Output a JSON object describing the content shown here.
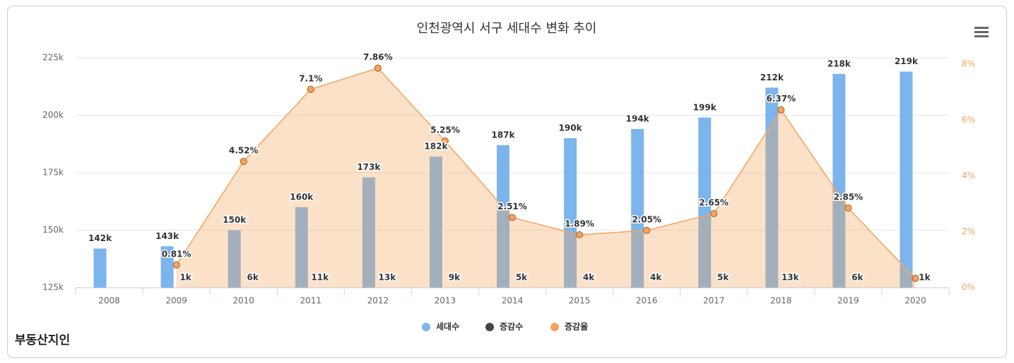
{
  "chart_data": {
    "type": "combo",
    "title": "인천광역시 서구 세대수 변화 추이",
    "categories": [
      "2008",
      "2009",
      "2010",
      "2011",
      "2012",
      "2013",
      "2014",
      "2015",
      "2016",
      "2017",
      "2018",
      "2019",
      "2020"
    ],
    "series": [
      {
        "name": "세대수",
        "type": "bar",
        "color": "#7cb5ec",
        "values": [
          142000,
          143000,
          150000,
          160000,
          173000,
          182000,
          187000,
          190000,
          194000,
          199000,
          212000,
          218000,
          219000
        ],
        "value_labels": [
          "142k",
          "143k",
          "150k",
          "160k",
          "173k",
          "182k",
          "187k",
          "190k",
          "194k",
          "199k",
          "212k",
          "218k",
          "219k"
        ]
      },
      {
        "name": "증감수",
        "type": "bar",
        "color": "#434348",
        "values": [
          null,
          1000,
          6000,
          11000,
          13000,
          9000,
          5000,
          4000,
          4000,
          5000,
          13000,
          6000,
          1000
        ],
        "value_labels": [
          null,
          "1k",
          "6k",
          "11k",
          "13k",
          "9k",
          "5k",
          "4k",
          "4k",
          "5k",
          "13k",
          "6k",
          "1k"
        ]
      },
      {
        "name": "증감율",
        "type": "area",
        "axis": "y2",
        "color": "#f7a35c",
        "values": [
          null,
          0.81,
          4.52,
          7.1,
          7.86,
          5.25,
          2.51,
          1.89,
          2.05,
          2.65,
          6.37,
          2.85,
          0.33
        ],
        "value_labels": [
          null,
          "0.81%",
          "4.52%",
          "7.1%",
          "7.86%",
          "5.25%",
          "2.51%",
          "1.89%",
          "2.05%",
          "2.65%",
          "6.37%",
          "2.85%",
          null
        ]
      }
    ],
    "ylim": [
      125000,
      225000
    ],
    "yticks": [
      {
        "value": 125000,
        "label": "125k"
      },
      {
        "value": 150000,
        "label": "150k"
      },
      {
        "value": 175000,
        "label": "175k"
      },
      {
        "value": 200000,
        "label": "200k"
      },
      {
        "value": 225000,
        "label": "225k"
      }
    ],
    "y2lim": [
      0,
      8.23
    ],
    "y2ticks": [
      {
        "value": 0,
        "label": "0%"
      },
      {
        "value": 2,
        "label": "2%"
      },
      {
        "value": 4,
        "label": "4%"
      },
      {
        "value": 6,
        "label": "6%"
      },
      {
        "value": 8,
        "label": "8%"
      }
    ],
    "grid": true,
    "legend": "bottom",
    "logo": "부동산지인"
  }
}
